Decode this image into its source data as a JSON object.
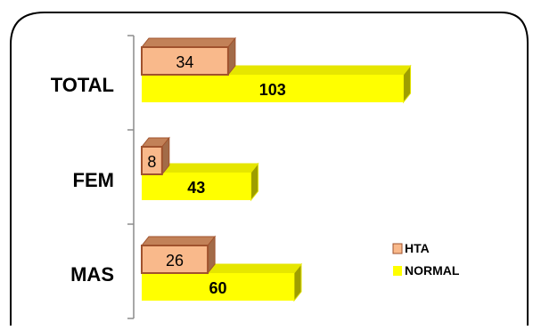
{
  "chart_data": {
    "type": "bar",
    "orientation": "horizontal",
    "style": "3d",
    "categories": [
      "TOTAL",
      "FEM",
      "MAS"
    ],
    "series": [
      {
        "name": "HTA",
        "values": [
          34,
          8,
          26
        ],
        "color": "#F9B98B",
        "edge_color": "#A0522D",
        "top_color": "#C28158",
        "side_color": "#A26B48"
      },
      {
        "name": "NORMAL",
        "values": [
          103,
          43,
          60
        ],
        "color": "#FFFF00",
        "edge_color": "#E6E600",
        "top_color": "#E6E600",
        "side_color": "#9E9E00"
      }
    ],
    "data_labels": true,
    "legend_position": "right",
    "grid": false,
    "title": "",
    "xlabel": "",
    "ylabel": ""
  }
}
